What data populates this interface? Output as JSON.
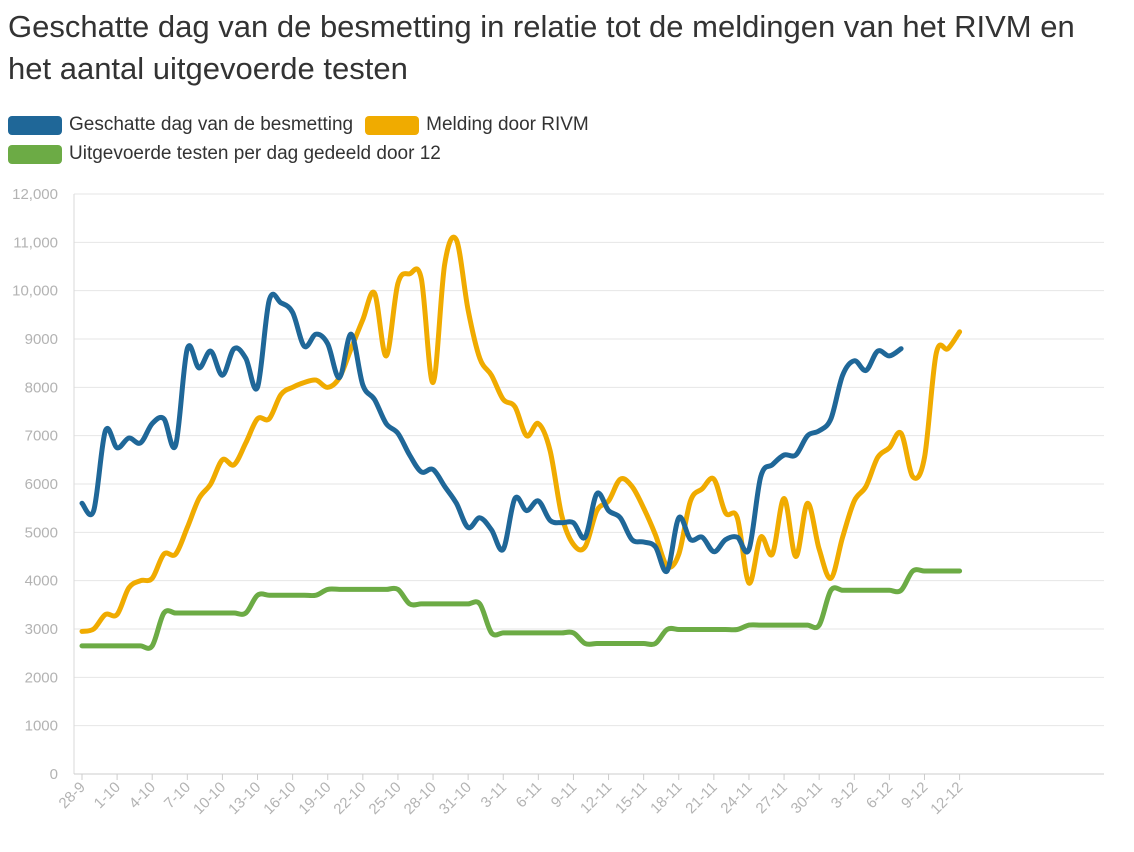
{
  "chart_data": {
    "type": "line",
    "title": "Geschatte dag van de besmetting in relatie tot de meldingen van het RIVM en het aantal uitgevoerde testen",
    "xlabel": "",
    "ylabel": "",
    "ylim": [
      0,
      12000
    ],
    "grid": true,
    "legend_position": "top-left",
    "y_ticks": [
      "0",
      "1000",
      "2000",
      "3000",
      "4000",
      "5000",
      "6000",
      "7000",
      "8000",
      "9000",
      "10,000",
      "11,000",
      "12,000"
    ],
    "x_tick_labels": [
      "28-9",
      "1-10",
      "4-10",
      "7-10",
      "10-10",
      "13-10",
      "16-10",
      "19-10",
      "22-10",
      "25-10",
      "28-10",
      "31-10",
      "3-11",
      "6-11",
      "9-11",
      "12-11",
      "15-11",
      "18-11",
      "21-11",
      "24-11",
      "27-11",
      "30-11",
      "3-12",
      "6-12",
      "9-12",
      "12-12"
    ],
    "series": [
      {
        "name": "Geschatte dag van de besmetting",
        "color": "#1f6798",
        "x": [
          0,
          1,
          2,
          3,
          4,
          5,
          6,
          7,
          8,
          9,
          10,
          11,
          12,
          13,
          14,
          15,
          16,
          17,
          18,
          19,
          20,
          21,
          22,
          23,
          24,
          25,
          26,
          27,
          28,
          29,
          30,
          31,
          32,
          33,
          34,
          35,
          36,
          37,
          38,
          39,
          40,
          41,
          42,
          43,
          44,
          45,
          46,
          47,
          48,
          49,
          50,
          51,
          52,
          53,
          54,
          55,
          56,
          57,
          58,
          59,
          60,
          61,
          62,
          63,
          64,
          65,
          66,
          67,
          68,
          69,
          70,
          71,
          72,
          73,
          74,
          75,
          76,
          77,
          78,
          79,
          80,
          81,
          82,
          83,
          84,
          85,
          86,
          87
        ],
        "values": [
          5600,
          5450,
          7100,
          6750,
          6950,
          6850,
          7250,
          7350,
          6800,
          8800,
          8400,
          8750,
          8250,
          8800,
          8600,
          8000,
          9800,
          9750,
          9550,
          8850,
          9100,
          8900,
          8200,
          9100,
          8050,
          7750,
          7250,
          7050,
          6600,
          6250,
          6300,
          5950,
          5600,
          5100,
          5300,
          5050,
          4650,
          5700,
          5450,
          5650,
          5250,
          5200,
          5200,
          4900,
          5800,
          5450,
          5300,
          4850,
          4800,
          4700,
          4200,
          5300,
          4850,
          4900,
          4600,
          4850,
          4900,
          4650,
          6150,
          6400,
          6600,
          6600,
          7000,
          7100,
          7350,
          8250,
          8550,
          8350,
          8750,
          8650,
          8800,
          null,
          null,
          null,
          null,
          null,
          null,
          null,
          null,
          null,
          null,
          null,
          null,
          null,
          null,
          null,
          null,
          null
        ]
      },
      {
        "name": "Melding door RIVM",
        "color": "#f0ab00",
        "x": [
          0,
          1,
          2,
          3,
          4,
          5,
          6,
          7,
          8,
          9,
          10,
          11,
          12,
          13,
          14,
          15,
          16,
          17,
          18,
          19,
          20,
          21,
          22,
          23,
          24,
          25,
          26,
          27,
          28,
          29,
          30,
          31,
          32,
          33,
          34,
          35,
          36,
          37,
          38,
          39,
          40,
          41,
          42,
          43,
          44,
          45,
          46,
          47,
          48,
          49,
          50,
          51,
          52,
          53,
          54,
          55,
          56,
          57,
          58,
          59,
          60,
          61,
          62,
          63,
          64,
          65,
          66,
          67,
          68,
          69,
          70,
          71,
          72,
          73,
          74,
          75,
          76,
          77,
          78,
          79,
          80,
          81,
          82,
          83,
          84,
          85,
          86,
          87
        ],
        "values": [
          2950,
          3000,
          3300,
          3300,
          3850,
          4000,
          4050,
          4550,
          4550,
          5100,
          5700,
          6000,
          6500,
          6400,
          6850,
          7350,
          7350,
          7850,
          8000,
          8100,
          8150,
          8000,
          8200,
          8800,
          9400,
          9950,
          8650,
          10150,
          10350,
          10250,
          8100,
          10550,
          11050,
          9600,
          8600,
          8250,
          7750,
          7600,
          7000,
          7250,
          6700,
          5350,
          4750,
          4700,
          5450,
          5650,
          6100,
          5950,
          5500,
          4950,
          4300,
          4550,
          5650,
          5900,
          6100,
          5400,
          5300,
          3950,
          4900,
          4550,
          5700,
          4500,
          5600,
          4650,
          4050,
          4900,
          5650,
          5950,
          6550,
          6750,
          7050,
          6150,
          6550,
          8700,
          8800,
          9150,
          null,
          null,
          null,
          null,
          null,
          null,
          null,
          null,
          null,
          null,
          null,
          null
        ]
      },
      {
        "name": "Uitgevoerde testen per dag gedeeld door 12",
        "color": "#6cab45",
        "x": [
          0,
          1,
          2,
          3,
          4,
          5,
          6,
          7,
          8,
          9,
          10,
          11,
          12,
          13,
          14,
          15,
          16,
          17,
          18,
          19,
          20,
          21,
          22,
          23,
          24,
          25,
          26,
          27,
          28,
          29,
          30,
          31,
          32,
          33,
          34,
          35,
          36,
          37,
          38,
          39,
          40,
          41,
          42,
          43,
          44,
          45,
          46,
          47,
          48,
          49,
          50,
          51,
          52,
          53,
          54,
          55,
          56,
          57,
          58,
          59,
          60,
          61,
          62,
          63,
          64,
          65,
          66,
          67,
          68,
          69,
          70,
          71,
          72,
          73,
          74,
          75,
          76,
          77,
          78,
          79,
          80,
          81,
          82,
          83,
          84,
          85,
          86,
          87
        ],
        "values": [
          2650,
          2650,
          2650,
          2650,
          2650,
          2650,
          2650,
          3330,
          3330,
          3330,
          3330,
          3330,
          3330,
          3330,
          3330,
          3700,
          3700,
          3700,
          3700,
          3700,
          3700,
          3820,
          3820,
          3820,
          3820,
          3820,
          3820,
          3820,
          3520,
          3520,
          3520,
          3520,
          3520,
          3520,
          3520,
          2920,
          2920,
          2920,
          2920,
          2920,
          2920,
          2920,
          2920,
          2700,
          2700,
          2700,
          2700,
          2700,
          2700,
          2700,
          2990,
          2990,
          2990,
          2990,
          2990,
          2990,
          2990,
          3080,
          3080,
          3080,
          3080,
          3080,
          3080,
          3080,
          3800,
          3800,
          3800,
          3800,
          3800,
          3800,
          3800,
          4200,
          4200,
          4200,
          4200,
          4200,
          null,
          null,
          null,
          null,
          null,
          null,
          null,
          null,
          null,
          null,
          null,
          null
        ]
      }
    ]
  }
}
